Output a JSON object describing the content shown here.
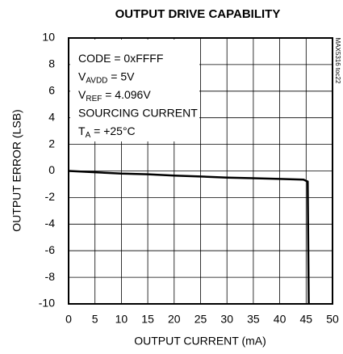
{
  "chart_data": {
    "type": "line",
    "title": "OUTPUT DRIVE CAPABILITY",
    "xlabel": "OUTPUT CURRENT (mA)",
    "ylabel": "OUTPUT ERROR (LSB)",
    "note": "MAX5316 toc22",
    "annotations": [
      [
        {
          "text": "CODE = 0xFFFF"
        }
      ],
      [
        {
          "text": "V"
        },
        {
          "text": "AVDD",
          "sub": true
        },
        {
          "text": " = 5V"
        }
      ],
      [
        {
          "text": "V"
        },
        {
          "text": "REF",
          "sub": true
        },
        {
          "text": " = 4.096V"
        }
      ],
      [
        {
          "text": "SOURCING CURRENT"
        }
      ],
      [
        {
          "text": "T"
        },
        {
          "text": "A",
          "sub": true
        },
        {
          "text": " = +25°C"
        }
      ]
    ],
    "xlim": [
      0,
      50
    ],
    "xticks": [
      0,
      5,
      10,
      15,
      20,
      25,
      30,
      35,
      40,
      45,
      50
    ],
    "ylim": [
      -10,
      10
    ],
    "yticks": [
      -10,
      -8,
      -6,
      -4,
      -2,
      0,
      2,
      4,
      6,
      8,
      10
    ],
    "grid": true,
    "series": [
      {
        "color": "#000000",
        "x": [
          0,
          5,
          10,
          15,
          20,
          25,
          30,
          35,
          40,
          44.5,
          45.3,
          45.5
        ],
        "values": [
          0,
          -0.1,
          -0.2,
          -0.25,
          -0.35,
          -0.42,
          -0.5,
          -0.55,
          -0.6,
          -0.65,
          -0.8,
          -10
        ]
      }
    ]
  }
}
